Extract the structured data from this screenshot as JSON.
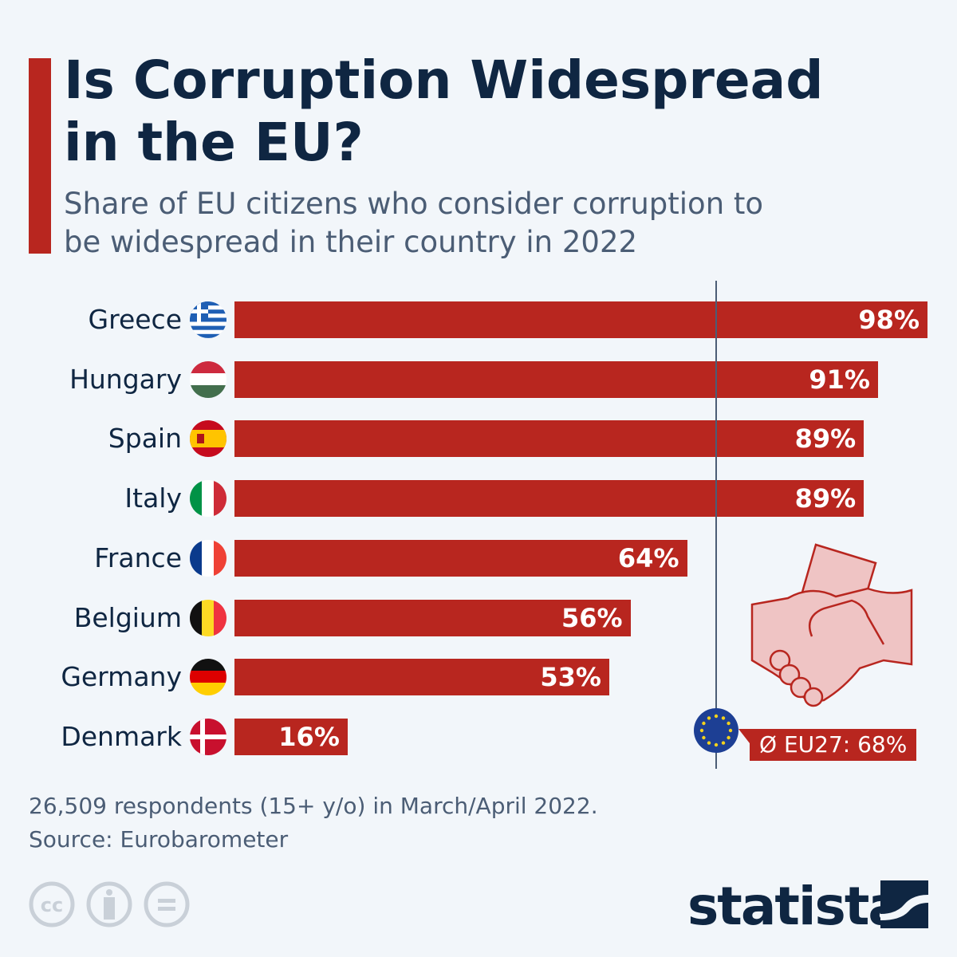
{
  "header": {
    "title": "Is Corruption Widespread in the EU?",
    "subtitle": "Share of EU citizens who consider corruption to be widespread in their country in 2022"
  },
  "chart_data": {
    "type": "bar",
    "orientation": "horizontal",
    "categories": [
      "Greece",
      "Hungary",
      "Spain",
      "Italy",
      "France",
      "Belgium",
      "Germany",
      "Denmark"
    ],
    "values": [
      98,
      91,
      89,
      89,
      64,
      56,
      53,
      16
    ],
    "value_labels": [
      "98%",
      "91%",
      "89%",
      "89%",
      "64%",
      "56%",
      "53%",
      "16%"
    ],
    "flag_icons": [
      "greece-flag-icon",
      "hungary-flag-icon",
      "spain-flag-icon",
      "italy-flag-icon",
      "france-flag-icon",
      "belgium-flag-icon",
      "germany-flag-icon",
      "denmark-flag-icon"
    ],
    "xlim": [
      0,
      98
    ],
    "grid": false,
    "reference_line": {
      "value": 68,
      "label": "Ø EU27: 68%"
    },
    "bar_color": "#b8261f"
  },
  "footer": {
    "note": "26,509 respondents (15+ y/o) in March/April 2022.",
    "source": "Source: Eurobarometer",
    "brand": "statista"
  },
  "colors": {
    "title": "#0f2642",
    "accent": "#b8261f",
    "background": "#f2f6fa"
  }
}
